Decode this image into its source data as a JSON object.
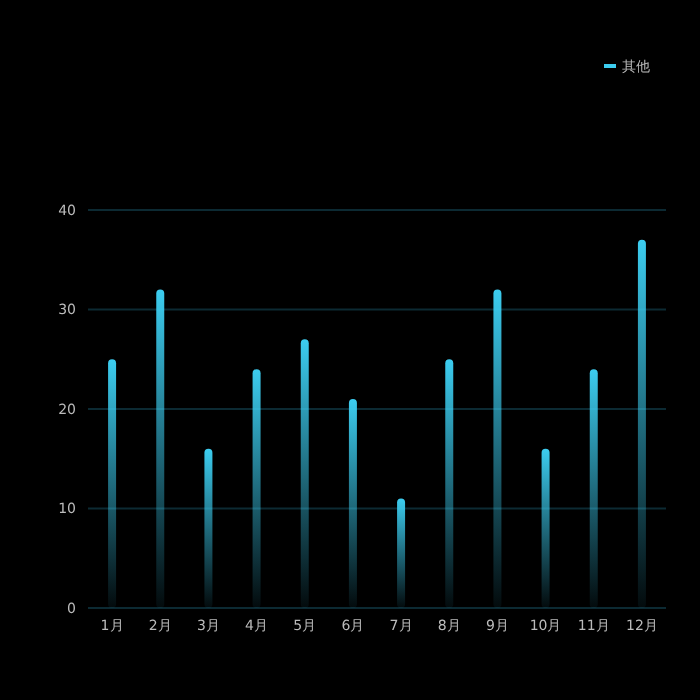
{
  "chart_data": {
    "type": "bar",
    "categories": [
      "1月",
      "2月",
      "3月",
      "4月",
      "5月",
      "6月",
      "7月",
      "8月",
      "9月",
      "10月",
      "11月",
      "12月"
    ],
    "series": [
      {
        "name": "其他",
        "color": "#3ccdf0",
        "values": [
          25,
          32,
          16,
          24,
          27,
          21,
          11,
          25,
          32,
          16,
          24,
          37
        ]
      }
    ],
    "ylim": [
      0,
      40
    ],
    "yticks": [
      0,
      10,
      20,
      30,
      40
    ],
    "grid": "y",
    "legend": "top right"
  }
}
